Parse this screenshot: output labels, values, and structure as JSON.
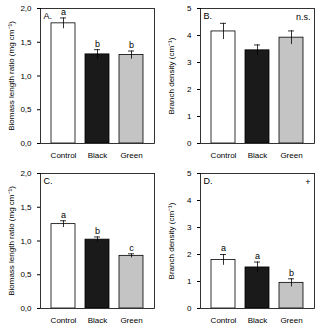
{
  "chart_data": [
    {
      "type": "bar",
      "title": "A.",
      "y_label": "Biomass length ratio (mg cm⁻¹)",
      "categories": [
        "Control",
        "Black",
        "Green"
      ],
      "values": [
        1.78,
        1.32,
        1.31
      ],
      "errors": [
        0.08,
        0.07,
        0.06
      ],
      "significance": [
        "a",
        "b",
        "b"
      ],
      "colors": [
        "#ffffff",
        "#1a1a1a",
        "#c4c4c4"
      ],
      "ylim": [
        0,
        2
      ],
      "yticks": [
        {
          "value": 0,
          "label": "0,0"
        },
        {
          "value": 0.5,
          "label": "0,5"
        },
        {
          "value": 1,
          "label": "1,0"
        },
        {
          "value": 1.5,
          "label": "1,5"
        },
        {
          "value": 2,
          "label": "2,0"
        }
      ]
    },
    {
      "type": "bar",
      "title": "B.",
      "y_label": "Branch density (cm⁻¹)",
      "categories": [
        "Control",
        "Black",
        "Green"
      ],
      "values": [
        4.15,
        3.45,
        3.92
      ],
      "errors": [
        0.3,
        0.2,
        0.25
      ],
      "annotation": "n.s.",
      "colors": [
        "#ffffff",
        "#1a1a1a",
        "#c4c4c4"
      ],
      "ylim": [
        0,
        5
      ],
      "yticks": [
        0,
        1,
        2,
        3,
        4,
        5
      ]
    },
    {
      "type": "bar",
      "title": "C.",
      "y_label": "Biomass length ratio (mg cm⁻¹)",
      "categories": [
        "Control",
        "Black",
        "Green"
      ],
      "values": [
        1.25,
        1.02,
        0.78
      ],
      "errors": [
        0.05,
        0.04,
        0.03
      ],
      "significance": [
        "a",
        "b",
        "c"
      ],
      "colors": [
        "#ffffff",
        "#1a1a1a",
        "#c4c4c4"
      ],
      "ylim": [
        0,
        2
      ],
      "yticks": [
        {
          "value": 0,
          "label": "0,0"
        },
        {
          "value": 0.5,
          "label": "0,5"
        },
        {
          "value": 1,
          "label": "1,0"
        },
        {
          "value": 1.5,
          "label": "1,5"
        },
        {
          "value": 2,
          "label": "2,0"
        }
      ]
    },
    {
      "type": "bar",
      "title": "D.",
      "y_label": "Branch density (cm⁻¹)",
      "categories": [
        "Control",
        "Black",
        "Green"
      ],
      "values": [
        1.8,
        1.52,
        0.95
      ],
      "errors": [
        0.2,
        0.2,
        0.15
      ],
      "significance": [
        "a",
        "a",
        "b"
      ],
      "annotation": "+",
      "colors": [
        "#ffffff",
        "#1a1a1a",
        "#c4c4c4"
      ],
      "ylim": [
        0,
        5
      ],
      "yticks": [
        0,
        1,
        2,
        3,
        4,
        5
      ]
    }
  ]
}
